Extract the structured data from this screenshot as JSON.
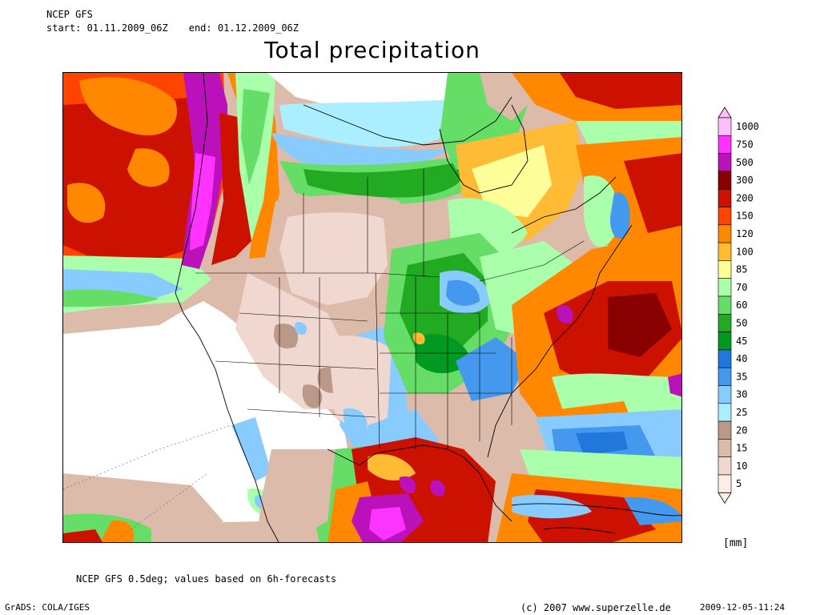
{
  "header": {
    "model": "NCEP GFS",
    "start": "start: 01.11.2009_06Z",
    "end": "end: 01.12.2009_06Z",
    "title": "Total precipitation"
  },
  "legend": {
    "unit": "[mm]",
    "levels": [
      {
        "label": "1000",
        "color": "#ffbfff"
      },
      {
        "label": "750",
        "color": "#ff33ff"
      },
      {
        "label": "500",
        "color": "#bb11bb"
      },
      {
        "label": "300",
        "color": "#880000"
      },
      {
        "label": "200",
        "color": "#cc1100"
      },
      {
        "label": "150",
        "color": "#ff4400"
      },
      {
        "label": "120",
        "color": "#ff8800"
      },
      {
        "label": "100",
        "color": "#ffbb33"
      },
      {
        "label": "85",
        "color": "#ffff99"
      },
      {
        "label": "70",
        "color": "#aaffaa"
      },
      {
        "label": "60",
        "color": "#66dd66"
      },
      {
        "label": "50",
        "color": "#22aa22"
      },
      {
        "label": "45",
        "color": "#009922"
      },
      {
        "label": "40",
        "color": "#2277dd"
      },
      {
        "label": "35",
        "color": "#4499ee"
      },
      {
        "label": "30",
        "color": "#88ccff"
      },
      {
        "label": "25",
        "color": "#aaeeff"
      },
      {
        "label": "20",
        "color": "#bb9988"
      },
      {
        "label": "15",
        "color": "#ddbbaa"
      },
      {
        "label": "10",
        "color": "#f0d8d0"
      },
      {
        "label": "5",
        "color": "#fdeee6"
      }
    ]
  },
  "footer": {
    "note": "NCEP GFS 0.5deg; values based on 6h-forecasts",
    "grads": "GrADS: COLA/IGES",
    "copyright": "(c) 2007 www.superzelle.de",
    "timestamp": "2009-12-05-11:24"
  },
  "colors": {
    "white": "#ffffff",
    "trace": "#fdeee6",
    "light_brown": "#f0d8d0",
    "tan": "#ddbbaa",
    "brown": "#bb9988",
    "cyan": "#aaeeff",
    "light_blue": "#88ccff",
    "mid_blue": "#4499ee",
    "blue": "#2277dd",
    "dark_green": "#009922",
    "green": "#22aa22",
    "light_green": "#66dd66",
    "pale_green": "#aaffaa",
    "yellow": "#ffff99",
    "light_orange": "#ffbb33",
    "orange": "#ff8800",
    "dark_orange": "#ff4400",
    "red": "#cc1100",
    "dark_red": "#880000",
    "purple": "#bb11bb",
    "magenta": "#ff33ff"
  }
}
